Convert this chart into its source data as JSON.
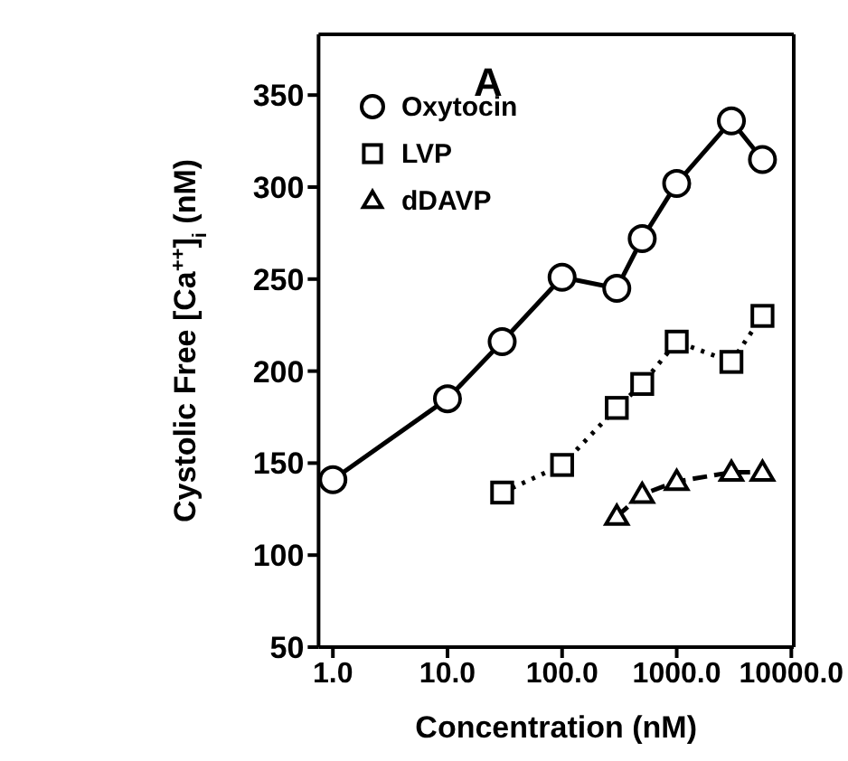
{
  "chart_data": {
    "type": "line",
    "title": "A",
    "xlabel": "Concentration (nM)",
    "ylabel": "Cystolic Free [Ca$^{++}$]$_{i}$ (nM)",
    "log": "x",
    "xlim": [
      0.75,
      10500
    ],
    "xticks": [
      {
        "value": 1,
        "label": "1.0"
      },
      {
        "value": 10,
        "label": "10.0"
      },
      {
        "value": 100,
        "label": "100.0"
      },
      {
        "value": 1000,
        "label": "1000.0"
      },
      {
        "value": 10000,
        "label": "10000.0"
      }
    ],
    "ylim": [
      50,
      383
    ],
    "yticks": [
      50,
      100,
      150,
      200,
      250,
      300,
      350
    ],
    "grid": false,
    "legend": "top left",
    "series": [
      {
        "name": "Oxytocin",
        "color": "#000000",
        "marker": "circle",
        "line_style": "solid",
        "x": [
          1,
          10,
          30,
          100,
          300,
          500,
          1000,
          3000,
          5600
        ],
        "values": [
          141,
          185,
          216,
          251,
          245,
          272,
          302,
          336,
          315
        ]
      },
      {
        "name": "LVP",
        "color": "#000000",
        "marker": "square",
        "line_style": "dotted",
        "x": [
          30,
          100,
          300,
          500,
          1000,
          3000,
          5600
        ],
        "values": [
          134,
          149,
          180,
          193,
          216,
          205,
          230
        ]
      },
      {
        "name": "dDAVP",
        "color": "#000000",
        "marker": "triangle",
        "line_style": "dashed",
        "x": [
          300,
          500,
          1000,
          3000,
          5600
        ],
        "values": [
          121,
          133,
          140,
          145,
          145
        ]
      }
    ]
  }
}
